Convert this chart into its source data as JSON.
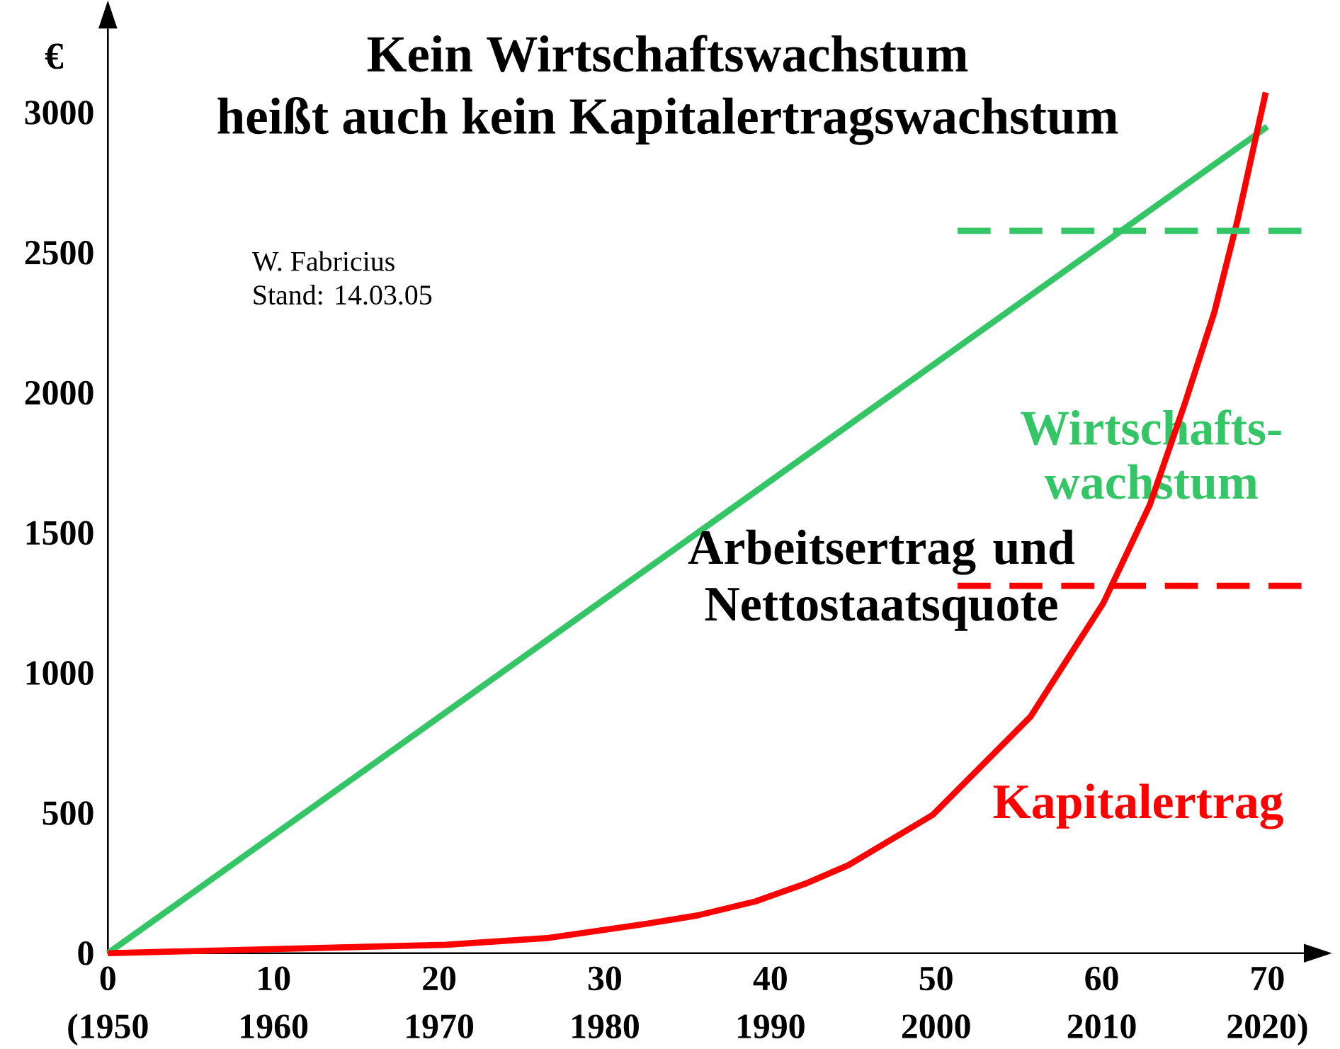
{
  "chart_data": {
    "type": "line",
    "title": "Kein Wirtschaftswachstum",
    "subtitle": "heißt auch kein Kapitalertragswachstum",
    "ylabel": "€",
    "xlim": [
      0,
      72.2
    ],
    "ylim": [
      0,
      3300
    ],
    "xticks": [
      0,
      10,
      20,
      30,
      40,
      50,
      60,
      70
    ],
    "yticks": [
      0,
      500,
      1000,
      1500,
      2000,
      2500,
      3000
    ],
    "series": [
      {
        "name": "Wirtschafts-wachstum",
        "color": "#33c566",
        "x": [
          0,
          70
        ],
        "values": [
          0,
          2950
        ]
      },
      {
        "name": "Kapitalertrag",
        "color": "#ff0000",
        "x": [
          0,
          20.4,
          26.5,
          32.5,
          35.6,
          39.1,
          42.1,
          44.7,
          49.8,
          55.7,
          60.1,
          62.9,
          65.0,
          66.8,
          68.2,
          69.9
        ],
        "values": [
          0,
          30,
          54,
          105,
          135,
          185,
          248,
          314,
          494,
          844,
          1250,
          1600,
          1959,
          2288,
          2617,
          3072
        ]
      },
      {
        "color": "#33c566",
        "line_style": "dashed",
        "x": [
          51.3,
          72.2
        ],
        "values": [
          2578,
          2578
        ]
      },
      {
        "color": "#ff0000",
        "line_style": "dashed",
        "x": [
          51.3,
          72.2
        ],
        "values": [
          1311,
          1311
        ]
      }
    ],
    "annotations": [
      "Arbeitsertrag und Nettostaatsquote",
      "W. Fabricius",
      "Stand: 14.03.05",
      "(1950",
      "1960",
      "1970",
      "1980",
      "1990",
      "2000",
      "2010",
      "2020)"
    ]
  }
}
